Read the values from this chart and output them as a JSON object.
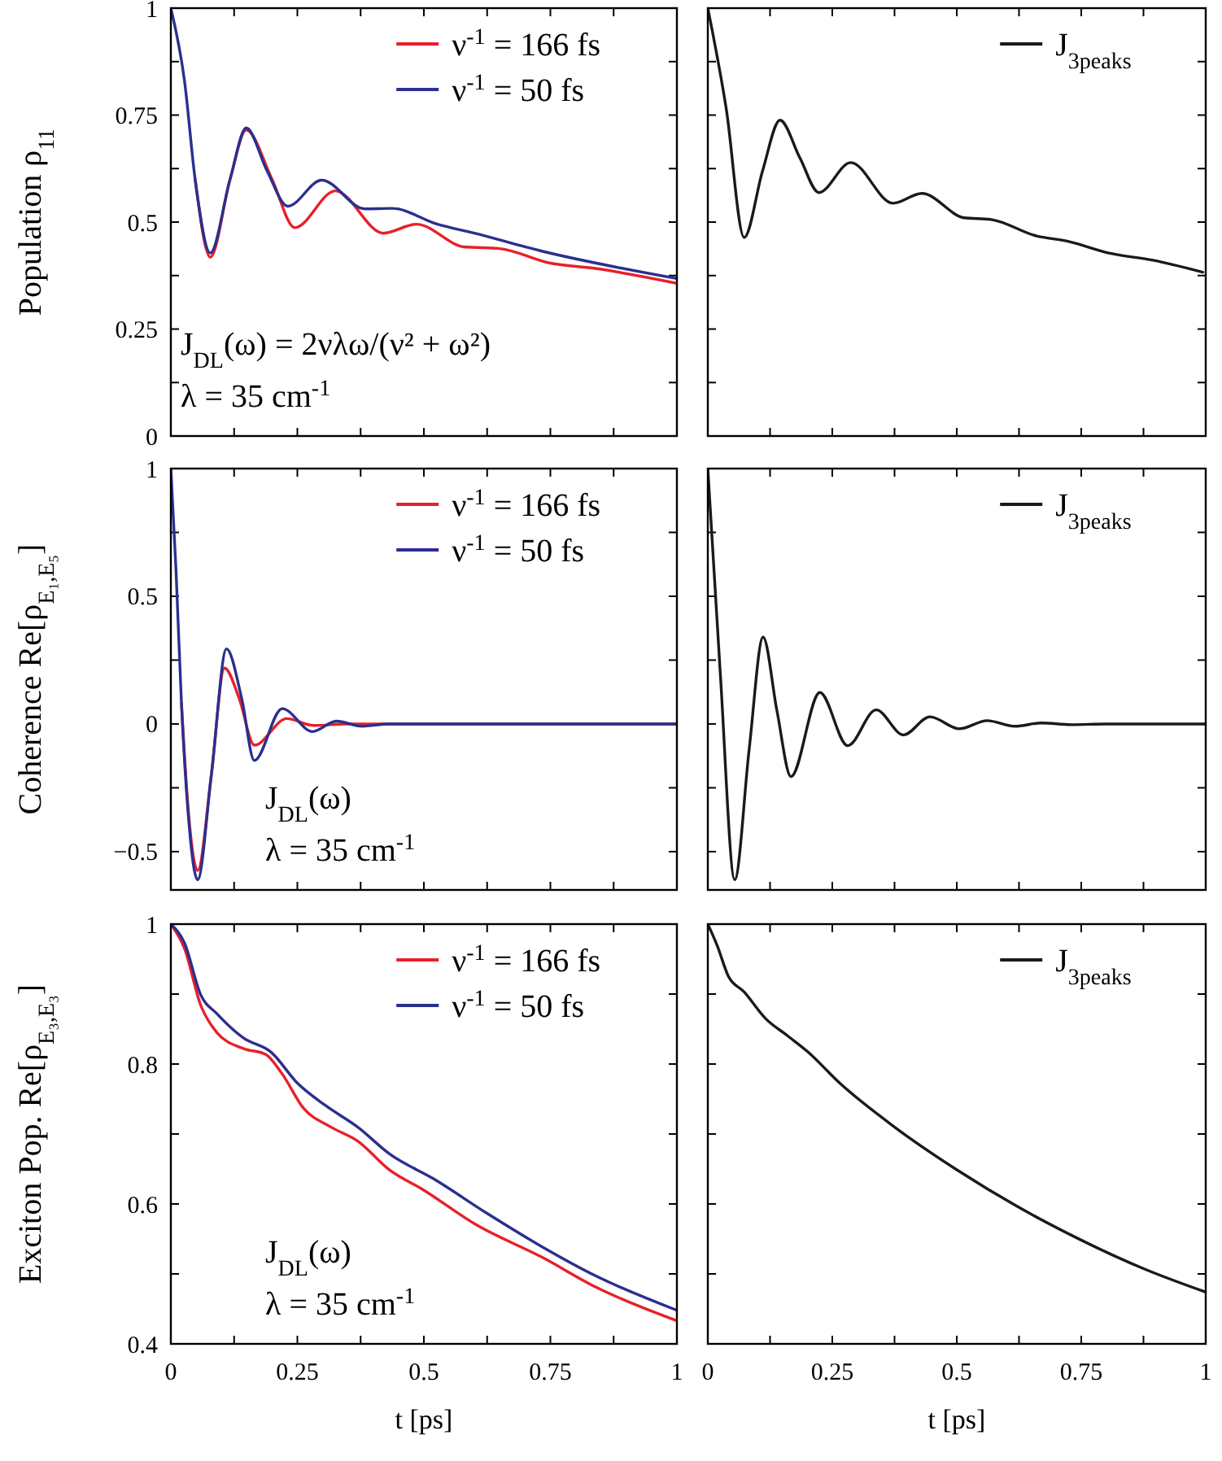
{
  "chart_data": [
    {
      "type": "line",
      "ylabel": "Population ρ$_{11}$",
      "xlim": [
        0,
        1
      ],
      "ylim": [
        0,
        1
      ],
      "tick_labels": "y",
      "legend": "top right",
      "grid": false,
      "xticks": [
        {
          "value": 0,
          "label": null
        },
        {
          "value": 0.125,
          "label": null
        },
        {
          "value": 0.25,
          "label": null
        },
        {
          "value": 0.375,
          "label": null
        },
        {
          "value": 0.5,
          "label": null
        },
        {
          "value": 0.625,
          "label": null
        },
        {
          "value": 0.75,
          "label": null
        },
        {
          "value": 0.875,
          "label": null
        },
        {
          "value": 1,
          "label": null
        }
      ],
      "yticks": [
        0,
        {
          "value": 0.125,
          "label": null
        },
        0.25,
        {
          "value": 0.375,
          "label": null
        },
        0.5,
        {
          "value": 0.625,
          "label": null
        },
        0.75,
        {
          "value": 0.875,
          "label": null
        },
        1
      ],
      "annotations": [
        "J$_{DL}$(ω) = 2νλω/(ν² + ω²)",
        "λ = 35 cm$^{-1}$"
      ],
      "series": [
        {
          "name": "ν$^{-1}$ = 166 fs",
          "color": "#e8202a",
          "x": [
            0.048,
            0.078,
            0.117,
            0.149,
            0.2,
            0.245,
            0.325,
            0.42,
            0.485,
            0.58,
            0.65,
            0.75,
            0.836,
            1
          ],
          "values": [
            0.6,
            0.418,
            0.6,
            0.715,
            0.6,
            0.487,
            0.573,
            0.474,
            0.495,
            0.442,
            0.438,
            0.404,
            0.392,
            0.357
          ]
        },
        {
          "name": "ν$^{-1}$ = 50 fs",
          "color": "#2b2f8f",
          "x": [
            0,
            0.027,
            0.048,
            0.078,
            0.117,
            0.149,
            0.19,
            0.231,
            0.298,
            0.383,
            0.437,
            0.527,
            0.6,
            0.73,
            1
          ],
          "values": [
            1,
            0.83,
            0.6,
            0.428,
            0.6,
            0.72,
            0.62,
            0.537,
            0.598,
            0.531,
            0.532,
            0.495,
            0.474,
            0.433,
            0.368
          ]
        }
      ]
    },
    {
      "type": "line",
      "xlim": [
        0,
        1
      ],
      "ylim": [
        0,
        1
      ],
      "tick_labels": false,
      "legend": "top right",
      "grid": false,
      "xticks": [
        {
          "value": 0,
          "label": null
        },
        {
          "value": 0.125,
          "label": null
        },
        {
          "value": 0.25,
          "label": null
        },
        {
          "value": 0.375,
          "label": null
        },
        {
          "value": 0.5,
          "label": null
        },
        {
          "value": 0.625,
          "label": null
        },
        {
          "value": 0.75,
          "label": null
        },
        {
          "value": 0.875,
          "label": null
        },
        {
          "value": 1,
          "label": null
        }
      ],
      "yticks": [
        {
          "value": 0,
          "label": null
        },
        {
          "value": 0.125,
          "label": null
        },
        {
          "value": 0.25,
          "label": null
        },
        {
          "value": 0.375,
          "label": null
        },
        {
          "value": 0.5,
          "label": null
        },
        {
          "value": 0.625,
          "label": null
        },
        {
          "value": 0.75,
          "label": null
        },
        {
          "value": 0.875,
          "label": null
        },
        {
          "value": 1,
          "label": null
        }
      ],
      "series": [
        {
          "name": "J$_{3peaks}$",
          "color": "#1a1a1a",
          "x": [
            0,
            0.037,
            0.073,
            0.11,
            0.145,
            0.185,
            0.223,
            0.287,
            0.372,
            0.43,
            0.515,
            0.569,
            0.659,
            0.723,
            0.808,
            0.894,
            0.994
          ],
          "values": [
            1,
            0.765,
            0.464,
            0.62,
            0.738,
            0.65,
            0.569,
            0.639,
            0.544,
            0.567,
            0.51,
            0.506,
            0.468,
            0.455,
            0.427,
            0.411,
            0.383
          ]
        }
      ]
    },
    {
      "type": "line",
      "ylabel": "Coherence Re[ρ$_{E₁,E₅}$]",
      "xlim": [
        0,
        1
      ],
      "ylim": [
        -0.65,
        1
      ],
      "tick_labels": "y",
      "legend": "top right",
      "grid": false,
      "xticks": [
        {
          "value": 0,
          "label": null
        },
        {
          "value": 0.125,
          "label": null
        },
        {
          "value": 0.25,
          "label": null
        },
        {
          "value": 0.375,
          "label": null
        },
        {
          "value": 0.5,
          "label": null
        },
        {
          "value": 0.625,
          "label": null
        },
        {
          "value": 0.75,
          "label": null
        },
        {
          "value": 0.875,
          "label": null
        },
        {
          "value": 1,
          "label": null
        }
      ],
      "yticks": [
        {
          "value": -0.5,
          "label": "−0.5"
        },
        {
          "value": -0.25,
          "label": null
        },
        0,
        {
          "value": 0.25,
          "label": null
        },
        0.5,
        {
          "value": 0.75,
          "label": null
        },
        1
      ],
      "annotations": [
        "J$_{DL}$(ω)",
        "λ = 35 cm$^{-1}$"
      ],
      "series": [
        {
          "name": "ν$^{-1}$ = 166 fs",
          "color": "#e8202a",
          "x": [
            0.021,
            0.035,
            0.053,
            0.08,
            0.106,
            0.135,
            0.165,
            0.229,
            0.282,
            0.35,
            0.5,
            1
          ],
          "values": [
            0.08,
            -0.35,
            -0.574,
            -0.2,
            0.219,
            0.1,
            -0.083,
            0.021,
            -0.006,
            0,
            0,
            0
          ]
        },
        {
          "name": "ν$^{-1}$ = 50 fs",
          "color": "#2b2f8f",
          "x": [
            0,
            0.01,
            0.021,
            0.035,
            0.053,
            0.08,
            0.11,
            0.14,
            0.165,
            0.22,
            0.28,
            0.327,
            0.378,
            0.431,
            1
          ],
          "values": [
            1,
            0.61,
            0.08,
            -0.37,
            -0.61,
            -0.2,
            0.294,
            0.1,
            -0.143,
            0.06,
            -0.03,
            0.011,
            -0.009,
            0,
            0
          ]
        }
      ]
    },
    {
      "type": "line",
      "xlim": [
        0,
        1
      ],
      "ylim": [
        -0.65,
        1
      ],
      "tick_labels": false,
      "legend": "top right",
      "grid": false,
      "xticks": [
        {
          "value": 0,
          "label": null
        },
        {
          "value": 0.125,
          "label": null
        },
        {
          "value": 0.25,
          "label": null
        },
        {
          "value": 0.375,
          "label": null
        },
        {
          "value": 0.5,
          "label": null
        },
        {
          "value": 0.625,
          "label": null
        },
        {
          "value": 0.75,
          "label": null
        },
        {
          "value": 0.875,
          "label": null
        },
        {
          "value": 1,
          "label": null
        }
      ],
      "yticks": [
        {
          "value": -0.5,
          "label": null
        },
        {
          "value": -0.25,
          "label": null
        },
        {
          "value": 0,
          "label": null
        },
        {
          "value": 0.25,
          "label": null
        },
        {
          "value": 0.5,
          "label": null
        },
        {
          "value": 0.75,
          "label": null
        },
        {
          "value": 1,
          "label": null
        }
      ],
      "series": [
        {
          "name": "J$_{3peaks}$",
          "color": "#1a1a1a",
          "x": [
            0,
            0.025,
            0.054,
            0.083,
            0.111,
            0.139,
            0.167,
            0.225,
            0.281,
            0.338,
            0.393,
            0.446,
            0.505,
            0.561,
            0.617,
            0.67,
            0.73,
            0.8,
            1
          ],
          "values": [
            1,
            0.2,
            -0.61,
            -0.1,
            0.34,
            0.05,
            -0.206,
            0.123,
            -0.085,
            0.055,
            -0.043,
            0.028,
            -0.019,
            0.013,
            -0.009,
            0.004,
            -0.003,
            0,
            0
          ]
        }
      ]
    },
    {
      "type": "line",
      "ylabel": "Exciton Pop. Re[ρ$_{E₃,E₃}$]",
      "xlabel": "t [ps]",
      "xlim": [
        0,
        1
      ],
      "ylim": [
        0.4,
        1
      ],
      "legend": "top right",
      "grid": false,
      "xticks": [
        0,
        {
          "value": 0.125,
          "label": null
        },
        0.25,
        {
          "value": 0.375,
          "label": null
        },
        0.5,
        {
          "value": 0.625,
          "label": null
        },
        0.75,
        {
          "value": 0.875,
          "label": null
        },
        1
      ],
      "yticks": [
        0.4,
        {
          "value": 0.5,
          "label": null
        },
        0.6,
        {
          "value": 0.7,
          "label": null
        },
        0.8,
        {
          "value": 0.9,
          "label": null
        },
        1
      ],
      "annotations": [
        "J$_{DL}$(ω)",
        "λ = 35 cm$^{-1}$"
      ],
      "series": [
        {
          "name": "ν$^{-1}$ = 166 fs",
          "color": "#e8202a",
          "x": [
            0,
            0.027,
            0.059,
            0.091,
            0.144,
            0.187,
            0.219,
            0.262,
            0.316,
            0.369,
            0.433,
            0.497,
            0.604,
            0.733,
            0.84,
            1
          ],
          "values": [
            1,
            0.965,
            0.884,
            0.845,
            0.822,
            0.814,
            0.787,
            0.737,
            0.71,
            0.69,
            0.648,
            0.621,
            0.57,
            0.524,
            0.481,
            0.433
          ]
        },
        {
          "name": "ν$^{-1}$ = 50 fs",
          "color": "#2b2f8f",
          "x": [
            0,
            0.027,
            0.059,
            0.091,
            0.144,
            0.198,
            0.251,
            0.305,
            0.369,
            0.433,
            0.519,
            0.626,
            0.733,
            0.84,
            1
          ],
          "values": [
            1,
            0.973,
            0.899,
            0.872,
            0.837,
            0.817,
            0.772,
            0.741,
            0.71,
            0.671,
            0.636,
            0.586,
            0.539,
            0.497,
            0.448
          ]
        }
      ]
    },
    {
      "type": "line",
      "xlabel": "t [ps]",
      "xlim": [
        0,
        1
      ],
      "ylim": [
        0.4,
        1
      ],
      "tick_labels": "x",
      "legend": "top right",
      "grid": false,
      "xticks": [
        0,
        {
          "value": 0.125,
          "label": null
        },
        0.25,
        {
          "value": 0.375,
          "label": null
        },
        0.5,
        {
          "value": 0.625,
          "label": null
        },
        0.75,
        {
          "value": 0.875,
          "label": null
        },
        1
      ],
      "yticks": [
        {
          "value": 0.4,
          "label": null
        },
        {
          "value": 0.5,
          "label": null
        },
        {
          "value": 0.6,
          "label": null
        },
        {
          "value": 0.7,
          "label": null
        },
        {
          "value": 0.8,
          "label": null
        },
        {
          "value": 0.9,
          "label": null
        },
        {
          "value": 1,
          "label": null
        }
      ],
      "series": [
        {
          "name": "J$_{3peaks}$",
          "color": "#1a1a1a",
          "x": [
            0,
            0.019,
            0.041,
            0.073,
            0.116,
            0.159,
            0.2,
            0.266,
            0.373,
            0.502,
            0.62,
            0.748,
            0.877,
            1
          ],
          "values": [
            1,
            0.969,
            0.926,
            0.903,
            0.865,
            0.841,
            0.818,
            0.772,
            0.711,
            0.648,
            0.597,
            0.549,
            0.507,
            0.474
          ]
        }
      ]
    }
  ]
}
